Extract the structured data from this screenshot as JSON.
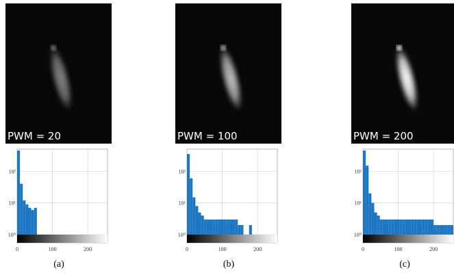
{
  "chart_data": [
    {
      "type": "histogram",
      "annotation": "PWM = 20",
      "caption": "(a)",
      "color": "#1f77c4",
      "log_y": true,
      "grid": true,
      "bins": [
        0,
        8,
        16,
        24,
        32,
        40,
        48,
        56,
        64,
        72,
        80,
        88,
        96,
        104,
        112,
        120,
        128,
        136,
        144,
        152,
        160,
        168,
        176,
        184,
        192,
        200,
        208,
        216,
        224,
        232,
        240,
        248,
        256
      ],
      "values": [
        450,
        40,
        12,
        9,
        7,
        6,
        7,
        0,
        0,
        0,
        0,
        0,
        0,
        0,
        0,
        0,
        0,
        0,
        0,
        0,
        0,
        0,
        0,
        0,
        0,
        0,
        0,
        0,
        0,
        0,
        0,
        0
      ],
      "xlim": [
        0,
        256
      ],
      "xticks": [
        0,
        100,
        200
      ],
      "ylim": [
        1,
        500
      ],
      "yticks": [
        {
          "value": 1,
          "label": "10⁰"
        },
        {
          "value": 10,
          "label": "10¹"
        },
        {
          "value": 100,
          "label": "10²"
        }
      ]
    },
    {
      "type": "histogram",
      "annotation": "PWM = 100",
      "caption": "(b)",
      "color": "#1f77c4",
      "log_y": true,
      "grid": true,
      "bins": [
        0,
        8,
        16,
        24,
        32,
        40,
        48,
        56,
        64,
        72,
        80,
        88,
        96,
        104,
        112,
        120,
        128,
        136,
        144,
        152,
        160,
        168,
        176,
        184,
        192,
        200,
        208,
        216,
        224,
        232,
        240,
        248,
        256
      ],
      "values": [
        350,
        60,
        15,
        8,
        5,
        4,
        3,
        3,
        3,
        3,
        3,
        3,
        3,
        3,
        3,
        3,
        3,
        3,
        2,
        2,
        0,
        0,
        2,
        0,
        0,
        0,
        0,
        0,
        0,
        0,
        0,
        0
      ],
      "xlim": [
        0,
        256
      ],
      "xticks": [
        0,
        100,
        200
      ],
      "ylim": [
        1,
        500
      ],
      "yticks": [
        {
          "value": 1,
          "label": "10⁰"
        },
        {
          "value": 10,
          "label": "10¹"
        },
        {
          "value": 100,
          "label": "10²"
        }
      ]
    },
    {
      "type": "histogram",
      "annotation": "PWM = 200",
      "caption": "(c)",
      "color": "#1f77c4",
      "log_y": true,
      "grid": true,
      "bins": [
        0,
        8,
        16,
        24,
        32,
        40,
        48,
        56,
        64,
        72,
        80,
        88,
        96,
        104,
        112,
        120,
        128,
        136,
        144,
        152,
        160,
        168,
        176,
        184,
        192,
        200,
        208,
        216,
        224,
        232,
        240,
        248,
        256
      ],
      "values": [
        450,
        150,
        20,
        10,
        5,
        4,
        3,
        3,
        3,
        3,
        3,
        3,
        3,
        3,
        3,
        3,
        3,
        3,
        3,
        3,
        3,
        3,
        3,
        3,
        3,
        2,
        2,
        2,
        2,
        2,
        2,
        2
      ],
      "xlim": [
        0,
        256
      ],
      "xticks": [
        0,
        100,
        200
      ],
      "ylim": [
        1,
        500
      ],
      "yticks": [
        {
          "value": 1,
          "label": "10⁰"
        },
        {
          "value": 10,
          "label": "10¹"
        },
        {
          "value": 100,
          "label": "10²"
        }
      ]
    }
  ]
}
